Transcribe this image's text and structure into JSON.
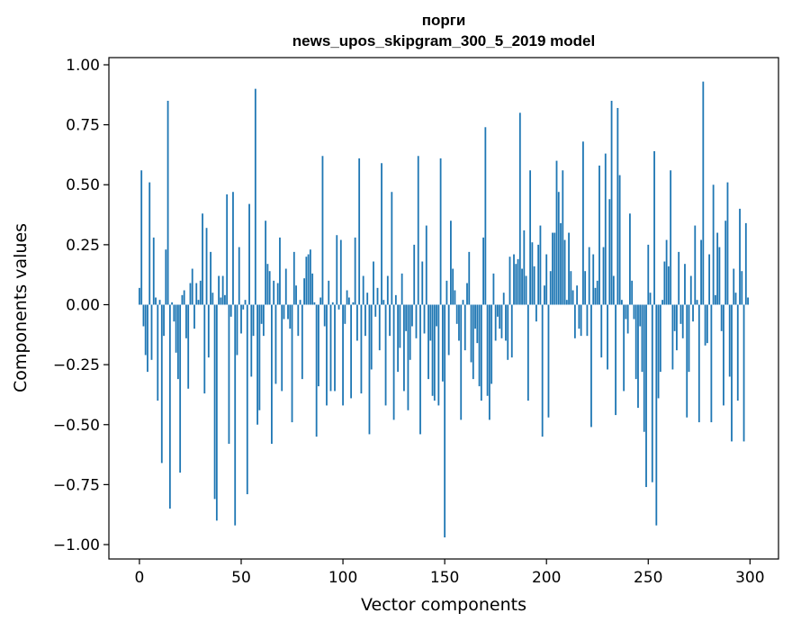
{
  "chart_data": {
    "type": "bar",
    "title_line1": "порги",
    "title_line2": "news_upos_skipgram_300_5_2019 model",
    "xlabel": "Vector components",
    "ylabel": "Components values",
    "xlim": [
      -15,
      314
    ],
    "ylim": [
      -1.06,
      1.03
    ],
    "xticks": [
      0,
      50,
      100,
      150,
      200,
      250,
      300
    ],
    "xtick_labels": [
      "0",
      "50",
      "100",
      "150",
      "200",
      "250",
      "300"
    ],
    "yticks": [
      -1.0,
      -0.75,
      -0.5,
      -0.25,
      0.0,
      0.25,
      0.5,
      0.75,
      1.0
    ],
    "ytick_labels": [
      "−1.00",
      "−0.75",
      "−0.50",
      "−0.25",
      "0.00",
      "0.25",
      "0.50",
      "0.75",
      "1.00"
    ],
    "bar_color": "#1f77b4",
    "values": [
      0.07,
      0.56,
      -0.09,
      -0.21,
      -0.28,
      0.51,
      -0.23,
      0.28,
      0.03,
      -0.4,
      0.02,
      -0.66,
      -0.13,
      0.23,
      0.85,
      -0.85,
      0.01,
      -0.07,
      -0.2,
      -0.31,
      -0.7,
      0.04,
      0.06,
      -0.14,
      -0.35,
      0.09,
      0.15,
      -0.1,
      0.09,
      0.02,
      0.1,
      0.38,
      -0.37,
      0.32,
      -0.22,
      0.22,
      0.05,
      -0.81,
      -0.9,
      0.12,
      0.03,
      0.12,
      0.04,
      0.46,
      -0.58,
      -0.05,
      0.47,
      -0.92,
      -0.21,
      0.24,
      -0.12,
      -0.02,
      0.02,
      -0.79,
      0.42,
      -0.3,
      -0.13,
      0.9,
      -0.5,
      -0.44,
      -0.08,
      -0.13,
      0.35,
      0.17,
      0.14,
      -0.58,
      0.1,
      -0.33,
      0.09,
      0.28,
      -0.36,
      -0.06,
      0.15,
      -0.06,
      -0.1,
      -0.49,
      0.22,
      0.08,
      -0.13,
      0.02,
      -0.31,
      0.11,
      0.2,
      0.21,
      0.23,
      0.13,
      0.01,
      -0.55,
      -0.34,
      0.03,
      0.62,
      -0.09,
      -0.42,
      0.1,
      -0.36,
      0.01,
      -0.36,
      0.29,
      -0.02,
      0.27,
      -0.42,
      -0.08,
      0.06,
      0.03,
      -0.39,
      0.01,
      0.28,
      -0.15,
      0.61,
      -0.37,
      0.12,
      -0.13,
      0.05,
      -0.54,
      -0.27,
      0.18,
      -0.05,
      0.07,
      -0.19,
      0.59,
      0.02,
      -0.42,
      0.12,
      -0.13,
      0.47,
      -0.48,
      0.04,
      -0.28,
      -0.18,
      0.13,
      -0.36,
      -0.11,
      -0.44,
      -0.23,
      -0.09,
      0.25,
      -0.14,
      0.62,
      -0.54,
      0.18,
      -0.12,
      0.33,
      -0.31,
      -0.15,
      -0.38,
      -0.4,
      -0.09,
      -0.42,
      0.61,
      -0.32,
      -0.97,
      0.1,
      -0.21,
      0.35,
      0.15,
      0.06,
      -0.08,
      -0.15,
      -0.48,
      0.02,
      -0.19,
      0.09,
      0.22,
      -0.24,
      -0.31,
      -0.1,
      -0.16,
      -0.34,
      -0.4,
      0.28,
      0.74,
      -0.38,
      -0.48,
      -0.33,
      0.13,
      -0.15,
      -0.05,
      -0.1,
      -0.14,
      0.05,
      -0.15,
      -0.23,
      0.2,
      -0.22,
      0.21,
      0.17,
      0.19,
      0.8,
      0.15,
      0.31,
      0.12,
      -0.4,
      0.56,
      0.26,
      0.16,
      -0.07,
      0.25,
      0.33,
      -0.55,
      0.08,
      0.21,
      -0.47,
      0.14,
      0.3,
      0.3,
      0.6,
      0.47,
      0.34,
      0.56,
      0.27,
      0.02,
      0.3,
      0.14,
      0.06,
      -0.14,
      0.08,
      -0.1,
      -0.13,
      0.68,
      0.14,
      -0.13,
      0.24,
      -0.51,
      0.21,
      0.07,
      0.1,
      0.58,
      -0.22,
      0.24,
      0.63,
      -0.27,
      0.44,
      0.85,
      0.12,
      -0.46,
      0.82,
      0.54,
      0.02,
      -0.36,
      -0.06,
      -0.12,
      0.38,
      0.1,
      -0.06,
      -0.31,
      -0.43,
      -0.09,
      -0.28,
      -0.53,
      -0.76,
      0.25,
      0.05,
      -0.74,
      0.64,
      -0.92,
      -0.39,
      -0.28,
      0.02,
      0.18,
      0.27,
      0.16,
      0.56,
      -0.27,
      -0.11,
      -0.19,
      0.22,
      -0.08,
      -0.14,
      0.17,
      -0.47,
      -0.28,
      0.12,
      -0.07,
      0.33,
      0.02,
      -0.49,
      0.27,
      0.93,
      -0.17,
      -0.16,
      0.21,
      -0.49,
      0.5,
      0.04,
      0.3,
      0.24,
      -0.11,
      -0.42,
      0.35,
      0.51,
      -0.3,
      -0.57,
      0.15,
      0.05,
      -0.4,
      0.4,
      0.14,
      -0.57,
      0.34,
      0.03
    ]
  }
}
